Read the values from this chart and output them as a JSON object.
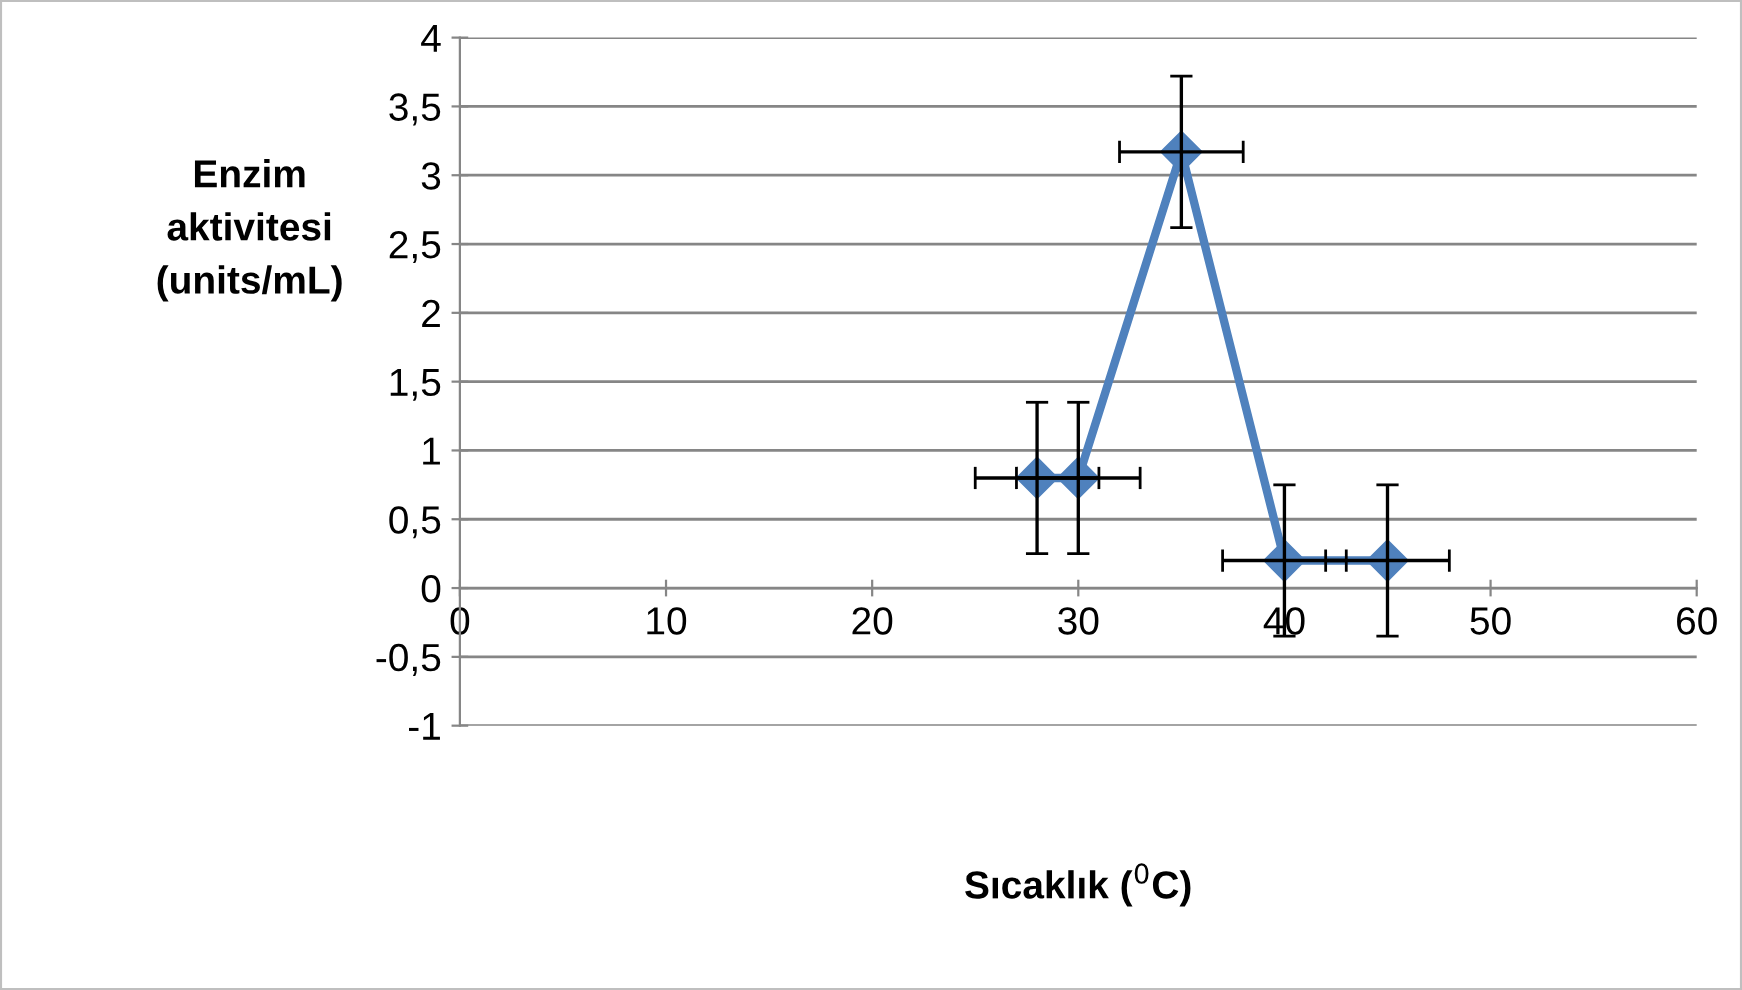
{
  "chart_data": {
    "type": "line",
    "xlabel": "Sıcaklık ($^{0}$C)",
    "ylabel": "Enzim\naktivitesi\n(units/mL)",
    "x": [
      28,
      30,
      35,
      40,
      45
    ],
    "series": [
      {
        "color": "#4f81bd",
        "values": [
          0.8,
          0.8,
          3.17,
          0.2,
          0.2
        ],
        "errors": [
          0.55,
          0.55,
          0.55,
          0.55,
          0.55
        ],
        "xerrors": [
          3,
          3,
          3,
          3,
          3
        ]
      }
    ],
    "xlim": [
      0,
      60
    ],
    "xticks": [
      0,
      10,
      20,
      30,
      40,
      50,
      60
    ],
    "ylim": [
      -1,
      4
    ],
    "yticks": [
      {
        "value": -1,
        "label": "-1"
      },
      {
        "value": -0.5,
        "label": "-0,5"
      },
      {
        "value": 0,
        "label": "0"
      },
      {
        "value": 0.5,
        "label": "0,5"
      },
      {
        "value": 1,
        "label": "1"
      },
      {
        "value": 1.5,
        "label": "1,5"
      },
      {
        "value": 2,
        "label": "2"
      },
      {
        "value": 2.5,
        "label": "2,5"
      },
      {
        "value": 3,
        "label": "3"
      },
      {
        "value": 3.5,
        "label": "3,5"
      },
      {
        "value": 4,
        "label": "4"
      }
    ],
    "grid": "y",
    "marker": "diamond",
    "line_style": "solid"
  }
}
